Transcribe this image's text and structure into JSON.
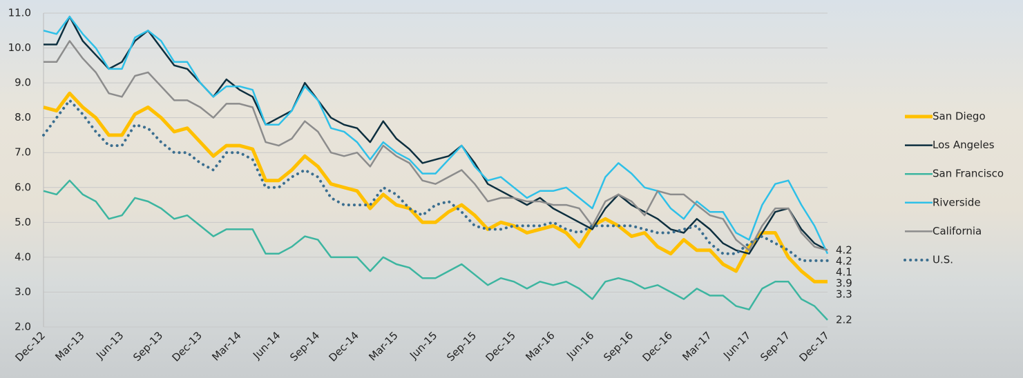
{
  "chart_data": {
    "type": "line",
    "categories": [
      "Dec-12",
      null,
      null,
      "Mar-13",
      null,
      null,
      "Jun-13",
      null,
      null,
      "Sep-13",
      null,
      null,
      "Dec-13",
      null,
      null,
      "Mar-14",
      null,
      null,
      "Jun-14",
      null,
      null,
      "Sep-14",
      null,
      null,
      "Dec-14",
      null,
      null,
      "Mar-15",
      null,
      null,
      "Jun-15",
      null,
      null,
      "Sep-15",
      null,
      null,
      "Dec-15",
      null,
      null,
      "Mar-16",
      null,
      null,
      "Jun-16",
      null,
      null,
      "Sep-16",
      null,
      null,
      "Dec-16",
      null,
      null,
      "Mar-17",
      null,
      null,
      "Jun-17",
      null,
      null,
      "Sep-17",
      null,
      null,
      "Dec-17"
    ],
    "ylim": [
      2,
      11
    ],
    "yticks": [
      {
        "value": 2,
        "label": "2.0"
      },
      {
        "value": 3,
        "label": "3.0"
      },
      {
        "value": 4,
        "label": "4.0"
      },
      {
        "value": 5,
        "label": "5.0"
      },
      {
        "value": 6,
        "label": "6.0"
      },
      {
        "value": 7,
        "label": "7.0"
      },
      {
        "value": 8,
        "label": "8.0"
      },
      {
        "value": 9,
        "label": "9.0"
      },
      {
        "value": 10,
        "label": "10.0"
      },
      {
        "value": 11,
        "label": "11.0"
      }
    ],
    "grid": true,
    "legend": "right",
    "series": [
      {
        "name": "San Diego",
        "color": "#ffc000",
        "width": 5,
        "dash": "solid",
        "values": [
          8.3,
          8.2,
          8.7,
          8.3,
          8.0,
          7.5,
          7.5,
          8.1,
          8.3,
          8.0,
          7.6,
          7.7,
          7.3,
          6.9,
          7.2,
          7.2,
          7.1,
          6.2,
          6.2,
          6.5,
          6.9,
          6.6,
          6.1,
          6.0,
          5.9,
          5.4,
          5.8,
          5.5,
          5.4,
          5.0,
          5.0,
          5.3,
          5.5,
          5.2,
          4.8,
          5.0,
          4.9,
          4.7,
          4.8,
          4.9,
          4.7,
          4.3,
          4.9,
          5.1,
          4.9,
          4.6,
          4.7,
          4.3,
          4.1,
          4.5,
          4.2,
          4.2,
          3.8,
          3.6,
          4.3,
          4.7,
          4.7,
          4.0,
          3.6,
          3.3,
          3.3
        ]
      },
      {
        "name": "Los Angeles",
        "color": "#0d2f3f",
        "width": 2.5,
        "dash": "solid",
        "values": [
          10.1,
          10.1,
          10.9,
          10.2,
          9.8,
          9.4,
          9.6,
          10.2,
          10.5,
          10.0,
          9.5,
          9.4,
          9.0,
          8.6,
          9.1,
          8.8,
          8.6,
          7.8,
          8.0,
          8.2,
          9.0,
          8.5,
          8.0,
          7.8,
          7.7,
          7.3,
          7.9,
          7.4,
          7.1,
          6.7,
          6.8,
          6.9,
          7.2,
          6.7,
          6.1,
          5.9,
          5.7,
          5.5,
          5.7,
          5.4,
          5.2,
          5.0,
          4.8,
          5.4,
          5.8,
          5.5,
          5.3,
          5.1,
          4.8,
          4.7,
          5.1,
          4.8,
          4.4,
          4.2,
          4.1,
          4.7,
          5.3,
          5.4,
          4.8,
          4.4,
          4.2
        ]
      },
      {
        "name": "San Francisco",
        "color": "#3cb5a0",
        "width": 2.5,
        "dash": "solid",
        "values": [
          5.9,
          5.8,
          6.2,
          5.8,
          5.6,
          5.1,
          5.2,
          5.7,
          5.6,
          5.4,
          5.1,
          5.2,
          4.9,
          4.6,
          4.8,
          4.8,
          4.8,
          4.1,
          4.1,
          4.3,
          4.6,
          4.5,
          4.0,
          4.0,
          4.0,
          3.6,
          4.0,
          3.8,
          3.7,
          3.4,
          3.4,
          3.6,
          3.8,
          3.5,
          3.2,
          3.4,
          3.3,
          3.1,
          3.3,
          3.2,
          3.3,
          3.1,
          2.8,
          3.3,
          3.4,
          3.3,
          3.1,
          3.2,
          3.0,
          2.8,
          3.1,
          2.9,
          2.9,
          2.6,
          2.5,
          3.1,
          3.3,
          3.3,
          2.8,
          2.6,
          2.2
        ]
      },
      {
        "name": "Riverside",
        "color": "#2ec0e8",
        "width": 2.5,
        "dash": "solid",
        "values": [
          10.5,
          10.4,
          10.9,
          10.4,
          10.0,
          9.4,
          9.4,
          10.3,
          10.5,
          10.2,
          9.6,
          9.6,
          9.0,
          8.6,
          8.9,
          8.9,
          8.8,
          7.8,
          7.8,
          8.2,
          8.9,
          8.5,
          7.7,
          7.6,
          7.3,
          6.8,
          7.3,
          7.0,
          6.8,
          6.4,
          6.4,
          6.8,
          7.2,
          6.6,
          6.2,
          6.3,
          6.0,
          5.7,
          5.9,
          5.9,
          6.0,
          5.7,
          5.4,
          6.3,
          6.7,
          6.4,
          6.0,
          5.9,
          5.4,
          5.1,
          5.6,
          5.3,
          5.3,
          4.7,
          4.5,
          5.5,
          6.1,
          6.2,
          5.5,
          4.9,
          4.1
        ]
      },
      {
        "name": "California",
        "color": "#8c8c8c",
        "width": 2.5,
        "dash": "solid",
        "values": [
          9.6,
          9.6,
          10.2,
          9.7,
          9.3,
          8.7,
          8.6,
          9.2,
          9.3,
          8.9,
          8.5,
          8.5,
          8.3,
          8.0,
          8.4,
          8.4,
          8.3,
          7.3,
          7.2,
          7.4,
          7.9,
          7.6,
          7.0,
          6.9,
          7.0,
          6.6,
          7.2,
          6.9,
          6.7,
          6.2,
          6.1,
          6.3,
          6.5,
          6.1,
          5.6,
          5.7,
          5.7,
          5.6,
          5.6,
          5.5,
          5.5,
          5.4,
          4.9,
          5.6,
          5.8,
          5.6,
          5.2,
          5.9,
          5.8,
          5.8,
          5.5,
          5.2,
          5.1,
          4.5,
          4.2,
          4.9,
          5.4,
          5.4,
          4.7,
          4.3,
          4.2
        ]
      },
      {
        "name": "U.S.",
        "color": "#3b6e8f",
        "width": 4,
        "dash": "dotted",
        "values": [
          7.5,
          8.0,
          8.5,
          8.1,
          7.6,
          7.2,
          7.2,
          7.8,
          7.7,
          7.3,
          7.0,
          7.0,
          6.7,
          6.5,
          7.0,
          7.0,
          6.8,
          6.0,
          6.0,
          6.3,
          6.5,
          6.3,
          5.7,
          5.5,
          5.5,
          5.5,
          6.0,
          5.8,
          5.4,
          5.2,
          5.5,
          5.6,
          5.3,
          4.9,
          4.8,
          4.8,
          4.9,
          4.9,
          4.9,
          5.0,
          4.8,
          4.7,
          4.9,
          4.9,
          4.9,
          4.9,
          4.8,
          4.7,
          4.7,
          4.8,
          4.9,
          4.4,
          4.1,
          4.1,
          4.4,
          4.6,
          4.4,
          4.2,
          3.9,
          3.9,
          3.9
        ]
      }
    ]
  }
}
